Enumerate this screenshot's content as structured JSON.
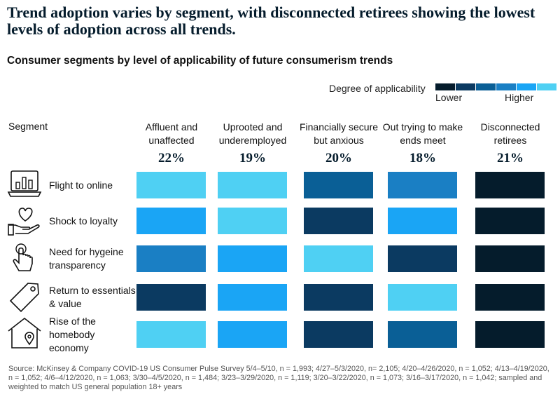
{
  "headline": "Trend adoption varies by segment, with disconnected retirees showing the lowest levels of adoption across all trends.",
  "subtitle": "Consumer segments by level of applicability of future consumerism trends",
  "legend": {
    "title": "Degree of applicability",
    "low_label": "Lower",
    "high_label": "Higher",
    "colors": [
      "#051c2c",
      "#0b3a61",
      "#0a5f96",
      "#1a7fc4",
      "#1aa5f5",
      "#4fd0f3"
    ]
  },
  "segment_label": "Segment",
  "chart_data": {
    "type": "heatmap",
    "title": "Consumer segments by level of applicability of future consumerism trends",
    "scale": "Degree of applicability: 1 = Lower, 6 = Higher",
    "columns": [
      {
        "name": "Affluent and unaffected",
        "share": "22%"
      },
      {
        "name": "Uprooted and underemployed",
        "share": "19%"
      },
      {
        "name": "Financially secure but anxious",
        "share": "20%"
      },
      {
        "name": "Out trying to make ends meet",
        "share": "18%"
      },
      {
        "name": "Disconnected retirees",
        "share": "21%"
      }
    ],
    "rows": [
      {
        "name": "Flight to online",
        "icon": "laptop-chart-icon",
        "levels": [
          6,
          6,
          3,
          4,
          1
        ]
      },
      {
        "name": "Shock to loyalty",
        "icon": "heart-hand-icon",
        "levels": [
          5,
          6,
          2,
          5,
          1
        ]
      },
      {
        "name": "Need for hygeine transparency",
        "icon": "pointing-hand-icon",
        "levels": [
          4,
          5,
          6,
          2,
          1
        ]
      },
      {
        "name": "Return to essentials & value",
        "icon": "price-tag-icon",
        "levels": [
          2,
          5,
          2,
          6,
          1
        ]
      },
      {
        "name": "Rise of the homebody economy",
        "icon": "house-pin-icon",
        "levels": [
          6,
          5,
          2,
          3,
          1
        ]
      }
    ]
  },
  "source": "Source:  McKinsey & Company COVID-19 US Consumer Pulse Survey 5/4–5/10, n = 1,993; 4/27–5/3/2020, n= 2,105; 4/20–4/26/2020, n = 1,052; 4/13–4/19/2020, n = 1,052; 4/6–4/12/2020, n = 1,063; 3/30–4/5/2020, n = 1,484; 3/23–3/29/2020, n = 1,119; 3/20–3/22/2020, n = 1,073; 3/16–3/17/2020, n = 1,042; sampled and weighted to match US general population 18+ years"
}
